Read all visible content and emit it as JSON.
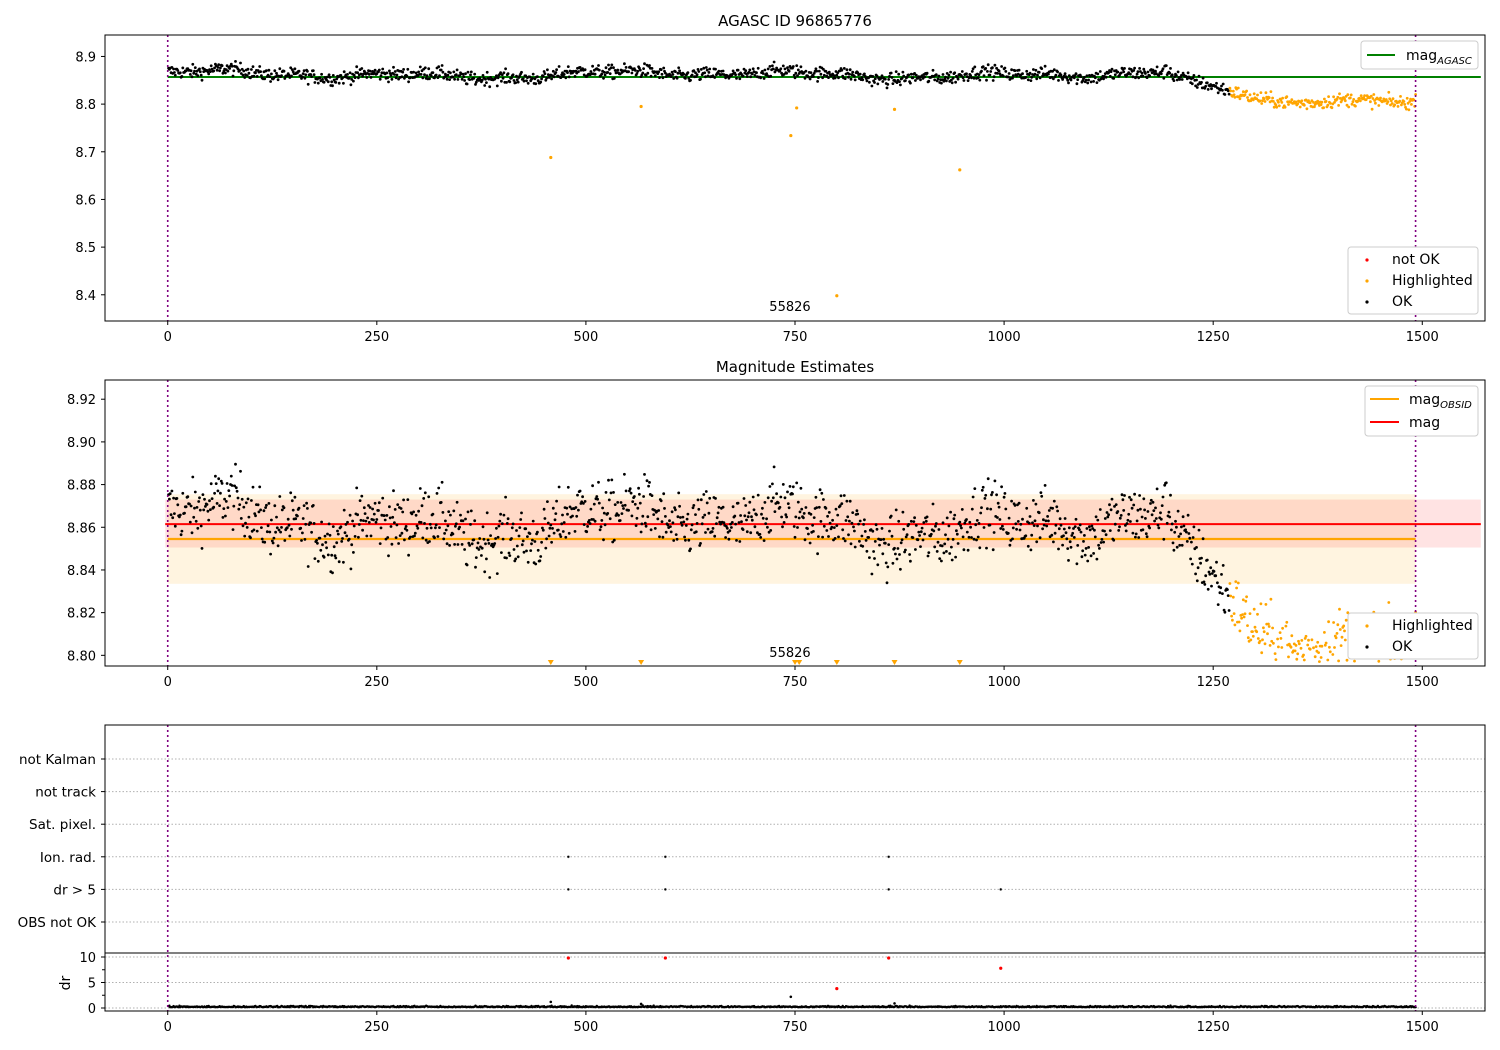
{
  "chart_data": [
    {
      "type": "scatter",
      "title": "AGASC ID 96865776",
      "xlim": [
        -75,
        1575
      ],
      "ylim": [
        8.345,
        8.945
      ],
      "xticks": [
        0,
        250,
        500,
        750,
        1000,
        1250,
        1500
      ],
      "xtick_labels": [
        "0",
        "250",
        "500",
        "750",
        "1000",
        "1250",
        "1500"
      ],
      "yticks": [
        8.4,
        8.5,
        8.6,
        8.7,
        8.8,
        8.9
      ],
      "ytick_labels": [
        "8.4",
        "8.5",
        "8.6",
        "8.7",
        "8.8",
        "8.9"
      ],
      "vlines": [
        0,
        1492
      ],
      "hline": {
        "name": "mag",
        "subscript": "AGASC",
        "y": 8.857,
        "x_range": [
          0,
          1570
        ],
        "color": "#008000"
      },
      "obsid_label": {
        "text": "55826",
        "x": 744
      },
      "legend_lines_placement": "top-right",
      "legend_points_placement": "lower-right",
      "series": [
        {
          "name": "not OK",
          "color": "#ff0000",
          "values": []
        },
        {
          "name": "Highlighted",
          "color": "#ffa500",
          "values": [
            [
              458,
              8.688
            ],
            [
              566,
              8.795
            ],
            [
              745,
              8.734
            ],
            [
              752,
              8.792
            ],
            [
              869,
              8.789
            ],
            [
              947,
              8.662
            ],
            [
              800,
              8.398
            ]
          ]
        },
        {
          "name": "OK",
          "color": "#000000",
          "values": []
        }
      ],
      "trend_description": "OK points scatter 8.845-8.89 from x=0 to ~1200, fall to ~8.83 by 1270; Highlighted points ~8.79-8.83 from 1270 to 1492"
    },
    {
      "type": "scatter",
      "title": "Magnitude Estimates",
      "xlim": [
        -75,
        1575
      ],
      "ylim": [
        8.795,
        8.929
      ],
      "xticks": [
        0,
        250,
        500,
        750,
        1000,
        1250,
        1500
      ],
      "xtick_labels": [
        "0",
        "250",
        "500",
        "750",
        "1000",
        "1250",
        "1500"
      ],
      "yticks": [
        8.8,
        8.82,
        8.84,
        8.86,
        8.88,
        8.9,
        8.92
      ],
      "ytick_labels": [
        "8.80",
        "8.82",
        "8.84",
        "8.86",
        "8.88",
        "8.90",
        "8.92"
      ],
      "vlines": [
        0,
        1492
      ],
      "lines": [
        {
          "name": "mag",
          "subscript": "OBSID",
          "y": 8.8545,
          "x_range": [
            0,
            1492
          ],
          "band": [
            8.8335,
            8.8755
          ],
          "color": "#ffa500"
        },
        {
          "name": "mag",
          "subscript": "",
          "y": 8.8615,
          "x_range": [
            -3,
            1570
          ],
          "band": [
            8.8505,
            8.873
          ],
          "color": "#ff0000"
        }
      ],
      "obsid_label": {
        "text": "55826",
        "x": 744
      },
      "clipped_markers_x": [
        458,
        566,
        750,
        755,
        800,
        869,
        947
      ],
      "legend_lines_placement": "top-right",
      "legend_points_placement": "lower-right",
      "series": [
        {
          "name": "Highlighted",
          "color": "#ffa500",
          "values": []
        },
        {
          "name": "OK",
          "color": "#000000",
          "values": []
        }
      ]
    },
    {
      "type": "scatter",
      "title": "",
      "xlim": [
        -75,
        1575
      ],
      "xticks": [
        0,
        250,
        500,
        750,
        1000,
        1250,
        1500
      ],
      "xtick_labels": [
        "0",
        "250",
        "500",
        "750",
        "1000",
        "1250",
        "1500"
      ],
      "vlines": [
        0,
        1492
      ],
      "flag_rows": [
        "not Kalman",
        "not track",
        "Sat. pixel.",
        "Ion. rad.",
        "dr > 5",
        "OBS not OK"
      ],
      "flags": [
        {
          "row": "Ion. rad.",
          "x": [
            479,
            595,
            862
          ]
        },
        {
          "row": "dr > 5",
          "x": [
            479,
            595,
            862,
            996
          ]
        }
      ],
      "dr": {
        "ylabel": "dr",
        "ylim": [
          -0.5,
          10.5
        ],
        "yticks": [
          0,
          5,
          10
        ],
        "ytick_labels": [
          "0",
          "5",
          "10"
        ],
        "red_points": [
          [
            479,
            9.8
          ],
          [
            595,
            9.8
          ],
          [
            862,
            9.8
          ],
          [
            996,
            7.8
          ],
          [
            800,
            3.8
          ]
        ],
        "black_outliers": [
          [
            458,
            1.2
          ],
          [
            745,
            2.2
          ],
          [
            566,
            0.8
          ],
          [
            869,
            0.9
          ]
        ]
      }
    }
  ]
}
